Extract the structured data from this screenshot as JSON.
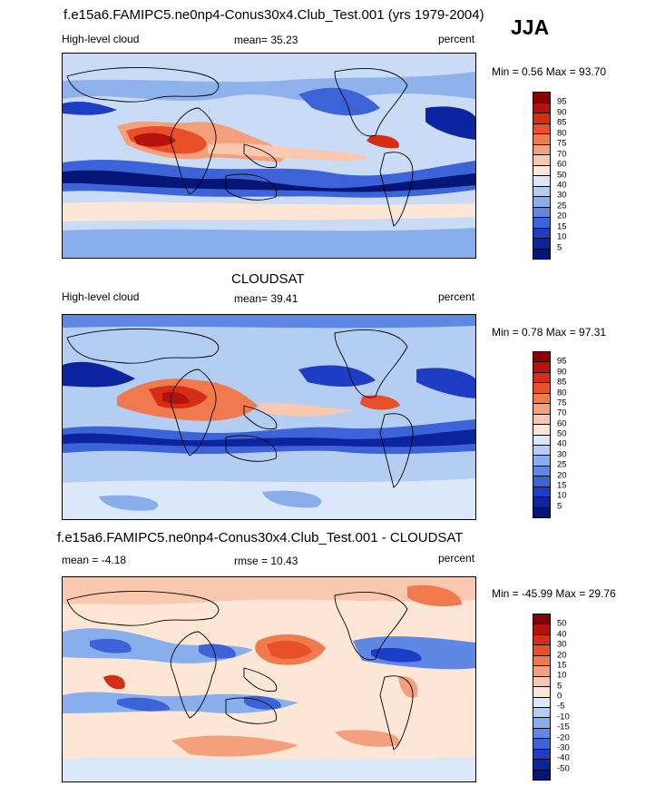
{
  "season": "JJA",
  "panels": [
    {
      "title": "f.e15a6.FAMIPC5.ne0np4-Conus30x4.Club_Test.001 (yrs 1979-2004)",
      "left_label": "High-level cloud",
      "center_label": "mean=  35.23",
      "right_label": "percent",
      "minmax": "Min =   0.56 Max =  93.70",
      "colorbar": {
        "labels": [
          "95",
          "90",
          "85",
          "80",
          "75",
          "70",
          "60",
          "50",
          "40",
          "30",
          "25",
          "20",
          "15",
          "10",
          "5"
        ],
        "colors": [
          "#8b0000",
          "#b4120c",
          "#d42f14",
          "#e8502a",
          "#f07a4e",
          "#f5a07c",
          "#fac8ae",
          "#fde6d6",
          "#dbe8fa",
          "#b4cdf3",
          "#89aeec",
          "#5f88e4",
          "#3c63d8",
          "#1d3dc4",
          "#0c24a0",
          "#051677"
        ]
      }
    },
    {
      "title": "CLOUDSAT",
      "left_label": "High-level cloud",
      "center_label": "mean=  39.41",
      "right_label": "percent",
      "minmax": "Min =   0.78 Max =  97.31",
      "colorbar": {
        "labels": [
          "95",
          "90",
          "85",
          "80",
          "75",
          "70",
          "60",
          "50",
          "40",
          "30",
          "25",
          "20",
          "15",
          "10",
          "5"
        ],
        "colors": [
          "#8b0000",
          "#b4120c",
          "#d42f14",
          "#e8502a",
          "#f07a4e",
          "#f5a07c",
          "#fac8ae",
          "#fde6d6",
          "#dbe8fa",
          "#b4cdf3",
          "#89aeec",
          "#5f88e4",
          "#3c63d8",
          "#1d3dc4",
          "#0c24a0",
          "#051677"
        ]
      }
    },
    {
      "title": "f.e15a6.FAMIPC5.ne0np4-Conus30x4.Club_Test.001 - CLOUDSAT",
      "left_label": "mean =  -4.18",
      "center_label": "rmse =  10.43",
      "right_label": "percent",
      "minmax": "Min = -45.99 Max =  29.76",
      "colorbar": {
        "labels": [
          "50",
          "40",
          "30",
          "20",
          "15",
          "10",
          "5",
          "0",
          "-5",
          "-10",
          "-15",
          "-20",
          "-30",
          "-40",
          "-50"
        ],
        "colors": [
          "#8b0000",
          "#b4120c",
          "#d42f14",
          "#e8502a",
          "#f07a4e",
          "#f5a07c",
          "#fac8ae",
          "#fde6d6",
          "#dbe8fa",
          "#b4cdf3",
          "#89aeec",
          "#5f88e4",
          "#3c63d8",
          "#1d3dc4",
          "#0c24a0",
          "#051677"
        ]
      }
    }
  ]
}
